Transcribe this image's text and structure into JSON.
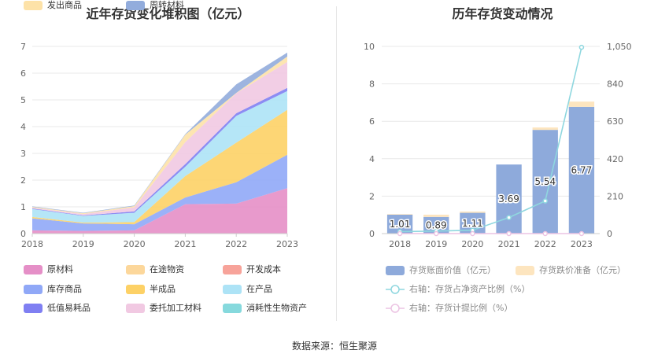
{
  "source_label": "数据来源：恒生聚源",
  "chart_data": [
    {
      "type": "area",
      "stacked": true,
      "title": "近年存货变化堆积图（亿元）",
      "categories": [
        "2018",
        "2019",
        "2020",
        "2021",
        "2022",
        "2023"
      ],
      "yticks": [
        "0",
        "1",
        "2",
        "3",
        "4",
        "5",
        "6",
        "7"
      ],
      "ylim": [
        0,
        7
      ],
      "grid": true,
      "legend_position": "bottom",
      "series": [
        {
          "name": "原材料",
          "color": "#e58fc7",
          "values": [
            0.12,
            0.1,
            0.12,
            1.1,
            1.12,
            1.7
          ]
        },
        {
          "name": "在途物资",
          "color": "#fcd79b",
          "values": [
            0,
            0,
            0,
            0,
            0,
            0
          ]
        },
        {
          "name": "开发成本",
          "color": "#f7a39a",
          "values": [
            0,
            0,
            0,
            0,
            0,
            0
          ]
        },
        {
          "name": "库存商品",
          "color": "#90a8f7",
          "values": [
            0.45,
            0.28,
            0.23,
            0.25,
            0.8,
            1.25
          ]
        },
        {
          "name": "半成品",
          "color": "#fdd166",
          "values": [
            0.05,
            0.03,
            0.08,
            0.8,
            1.48,
            1.68
          ]
        },
        {
          "name": "在产品",
          "color": "#ade3f6",
          "values": [
            0.3,
            0.25,
            0.35,
            0.35,
            1.0,
            0.7
          ]
        },
        {
          "name": "低值易耗品",
          "color": "#7f7ff2",
          "values": [
            0.02,
            0.02,
            0.05,
            0.1,
            0.1,
            0.12
          ]
        },
        {
          "name": "委托加工材料",
          "color": "#f1c9e2",
          "values": [
            0.03,
            0.05,
            0.15,
            0.82,
            0.75,
            0.97
          ]
        },
        {
          "name": "消耗性生物资产",
          "color": "#86d9dd",
          "values": [
            0,
            0,
            0,
            0,
            0,
            0
          ]
        },
        {
          "name": "发出商品",
          "color": "#fde2a8",
          "values": [
            0.03,
            0.03,
            0.05,
            0.28,
            0.01,
            0.2
          ]
        },
        {
          "name": "周转材料",
          "color": "#92acdc",
          "values": [
            0.02,
            0.02,
            0.02,
            0.02,
            0.32,
            0.15
          ]
        }
      ]
    },
    {
      "type": "bar",
      "title": "历年存货变动情况",
      "categories": [
        "2018",
        "2019",
        "2020",
        "2021",
        "2022",
        "2023"
      ],
      "ylim": [
        0,
        10
      ],
      "yticks_left": [
        "0",
        "2",
        "4",
        "6",
        "8",
        "10"
      ],
      "ylim_right": [
        0,
        1050
      ],
      "yticks_right": [
        "0",
        "210",
        "420",
        "630",
        "840",
        "1,050"
      ],
      "grid": true,
      "legend_position": "bottom",
      "series": [
        {
          "name": "存货账面价值（亿元）",
          "color": "#8eaadb",
          "values": [
            1.01,
            0.89,
            1.11,
            3.69,
            5.54,
            6.77
          ],
          "labels": [
            "1.01",
            "0.89",
            "1.11",
            "3.69",
            "5.54",
            "6.77"
          ]
        },
        {
          "name": "存货跌价准备（亿元）",
          "color": "#fde5bf",
          "values": [
            0.03,
            0.12,
            0.07,
            0,
            0.13,
            0.28
          ]
        },
        {
          "name": "右轴：存货占净资产比例（%）",
          "color": "#8fd7df",
          "axis": "right",
          "values": [
            11,
            14,
            19,
            90,
            183,
            1045
          ]
        },
        {
          "name": "右轴：存货计提比例（%）",
          "color": "#ecc4e3",
          "axis": "right",
          "values": [
            0,
            0,
            0,
            0,
            0,
            0
          ]
        }
      ]
    }
  ]
}
